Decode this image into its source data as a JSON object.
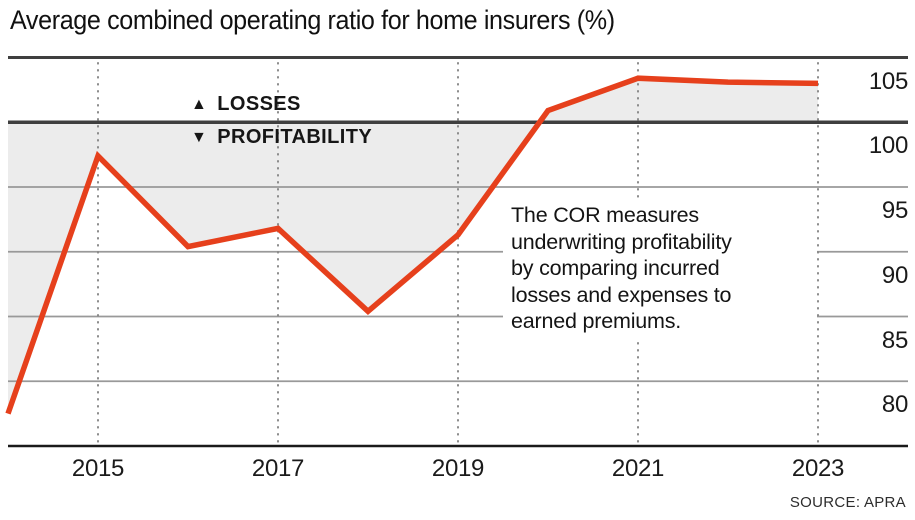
{
  "header": {
    "title": "Average combined operating ratio for home insurers (%)"
  },
  "annotations": {
    "losses_icon": "▲",
    "losses_label": "LOSSES",
    "profitability_icon": "▼",
    "profitability_label": "PROFITABILITY",
    "note": "The COR measures\nunderwriting profitability\nby comparing incurred\nlosses and expenses to\nearned premiums."
  },
  "source": "SOURCE: APRA",
  "colors": {
    "line": "#E6401C",
    "area_fill": "#ECECEC",
    "grid_minor": "#999999",
    "grid_major": "#3F3F3F",
    "axis_bottom": "#1A1A1A",
    "dotted_grid": "#8A8A8A",
    "text": "#111111"
  },
  "chart_data": {
    "type": "line",
    "title": "Average combined operating ratio for home insurers (%)",
    "series_name": "Average combined operating ratio",
    "x": [
      2014,
      2015,
      2016,
      2017,
      2018,
      2019,
      2020,
      2021,
      2022,
      2023
    ],
    "values": [
      77.5,
      97.4,
      90.4,
      91.8,
      85.4,
      91.3,
      100.9,
      103.4,
      103.1,
      103.0
    ],
    "y_ticks": [
      105,
      100,
      95,
      90,
      85,
      80
    ],
    "y_minor_ticks": [
      95,
      90,
      85,
      80
    ],
    "x_tick_years": [
      2015,
      2017,
      2019,
      2021,
      2023
    ],
    "x_tick_labels": [
      "2015",
      "2017",
      "2019",
      "2021",
      "2023"
    ],
    "ylim": [
      75,
      105
    ],
    "baseline": 100,
    "legend": "none",
    "grid": "solid horizontal lines at y ticks, dotted vertical lines at x ticks",
    "shading": "gray area between the line and the 100 baseline (both above and below)"
  }
}
